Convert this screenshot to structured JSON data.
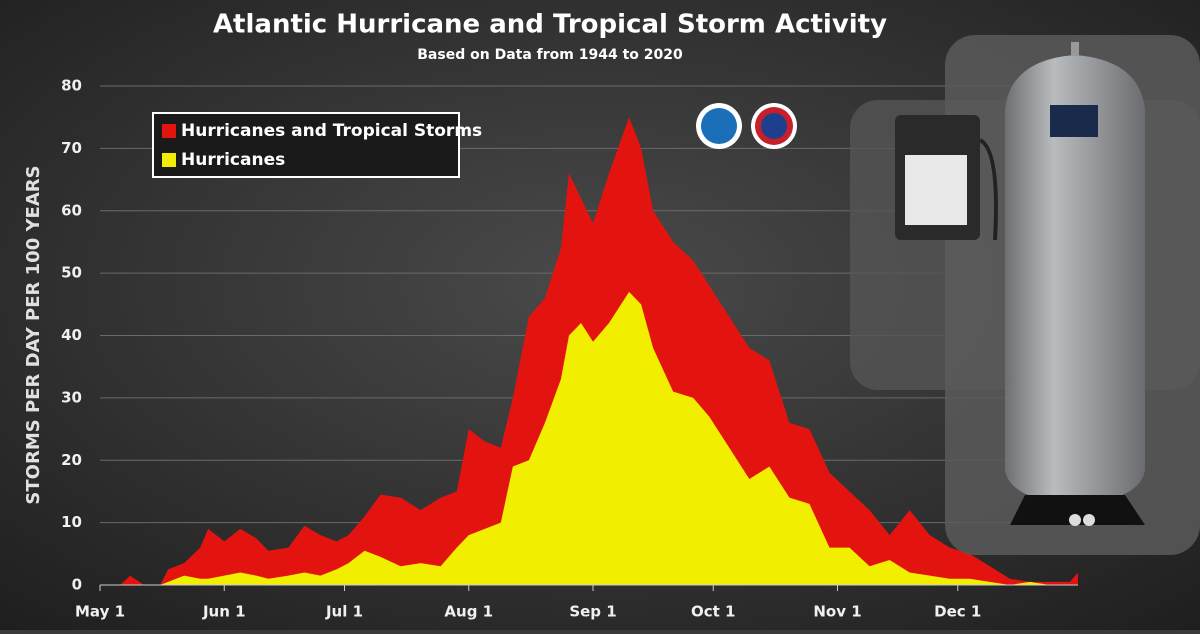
{
  "chart_data": {
    "type": "area",
    "title": "Atlantic Hurricane and Tropical Storm Activity",
    "subtitle": "Based on Data from 1944 to 2020",
    "y_label": "STORMS PER DAY PER 100 YEARS",
    "x": [
      0,
      5,
      7.5,
      11,
      15,
      17,
      21,
      25,
      27,
      31,
      35,
      39,
      42,
      47,
      51,
      55,
      59,
      62,
      66,
      70,
      75,
      80,
      85,
      89,
      92,
      96,
      100,
      103,
      107,
      111,
      115,
      117,
      120,
      123,
      127,
      132,
      135,
      138,
      143,
      148,
      152,
      157,
      162,
      167,
      172,
      177,
      182,
      187,
      192,
      197,
      202,
      207,
      212,
      217,
      222,
      227,
      232,
      237,
      242,
      244
    ],
    "series": [
      {
        "name": "Hurricanes and Tropical Storms",
        "color": "#e3140f",
        "values": [
          0,
          0,
          1.5,
          0,
          0,
          2.5,
          3.5,
          6,
          9,
          7,
          9,
          7.5,
          5.5,
          6,
          9.5,
          8,
          7,
          8,
          11,
          14.5,
          14,
          12,
          14,
          15,
          25,
          23,
          22,
          30,
          43,
          46,
          54,
          66,
          62,
          58,
          66,
          75,
          70,
          60,
          55,
          52,
          48,
          43,
          38,
          36,
          26,
          25,
          18,
          15,
          12,
          8,
          12,
          8,
          6,
          5,
          3,
          1,
          0.5,
          0.5,
          0.5,
          2
        ]
      },
      {
        "name": "Hurricanes",
        "color": "#f2ee00",
        "values": [
          0,
          0,
          0,
          0,
          0,
          0.5,
          1.5,
          1,
          1,
          1.5,
          2,
          1.5,
          1,
          1.5,
          2,
          1.5,
          2.5,
          3.5,
          5.5,
          4.5,
          3,
          3.5,
          3,
          6,
          8,
          9,
          10,
          19,
          20,
          26,
          33,
          40,
          42,
          39,
          42,
          47,
          45,
          38,
          31,
          30,
          27,
          22,
          17,
          19,
          14,
          13,
          6,
          6,
          3,
          4,
          2,
          1.5,
          1,
          1,
          0.5,
          0,
          0.5,
          0,
          0,
          0
        ]
      }
    ],
    "xlim": [
      0,
      244
    ],
    "xticks": [
      {
        "value": 0,
        "label": "May 1"
      },
      {
        "value": 31,
        "label": "Jun 1"
      },
      {
        "value": 61,
        "label": "Jul 1"
      },
      {
        "value": 92,
        "label": "Aug 1"
      },
      {
        "value": 123,
        "label": "Sep 1"
      },
      {
        "value": 153,
        "label": "Oct 1"
      },
      {
        "value": 184,
        "label": "Nov 1"
      },
      {
        "value": 214,
        "label": "Dec 1"
      }
    ],
    "ylim": [
      0,
      80
    ],
    "yticks": [
      0,
      10,
      20,
      30,
      40,
      50,
      60,
      70,
      80
    ],
    "grid": true
  }
}
